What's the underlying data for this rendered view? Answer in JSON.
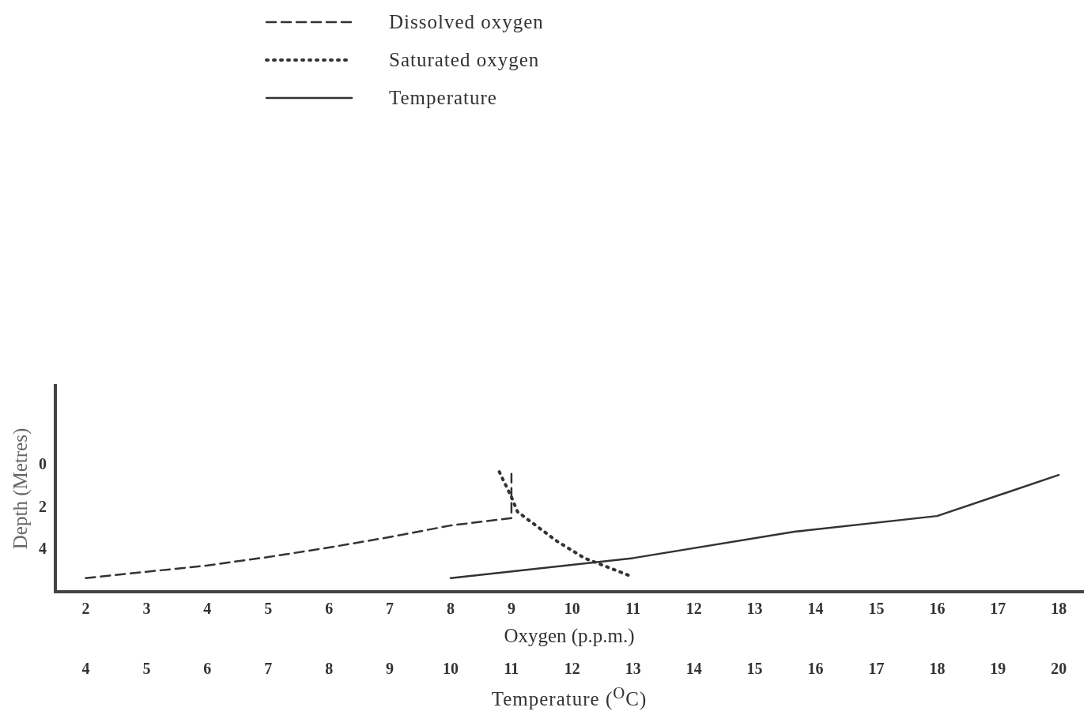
{
  "chart_data": {
    "type": "line",
    "xlabel": "Oxygen (p.p.m.)",
    "x2label": "Temperature ($^{O}$C)",
    "ylabel": "Depth (Metres)",
    "xlim": [
      1.5,
      18.4
    ],
    "xticks": [
      2,
      3,
      4,
      5,
      6,
      7,
      8,
      9,
      10,
      11,
      12,
      13,
      14,
      15,
      16,
      17,
      18
    ],
    "x2lim": [
      3.5,
      20.4
    ],
    "x2ticks": [
      4,
      5,
      6,
      7,
      8,
      9,
      10,
      11,
      12,
      13,
      14,
      15,
      16,
      17,
      18,
      19,
      20
    ],
    "ylim": [
      6,
      -3.8
    ],
    "yticks": [
      0,
      2,
      4
    ],
    "grid": false,
    "legend": "top",
    "marker": "none",
    "series": [
      {
        "name": "Dissolved oxygen",
        "color": "#333333",
        "line_style": "dashed",
        "x": [
          2,
          3,
          4,
          5,
          6,
          7,
          8,
          9,
          9
        ],
        "values": [
          5.35,
          5.05,
          4.75,
          4.35,
          3.9,
          3.4,
          2.85,
          2.5,
          0.4
        ]
      },
      {
        "name": "Saturated oxygen",
        "color": "#333333",
        "line_style": "dotted",
        "x": [
          8.8,
          9.0,
          9.1,
          9.75,
          10.2,
          11.0
        ],
        "values": [
          0.3,
          1.5,
          2.2,
          3.6,
          4.4,
          5.3
        ]
      },
      {
        "name": "Temperature",
        "color": "#333333",
        "line_style": "solid",
        "axis": "x2",
        "x": [
          10,
          13,
          15.65,
          18,
          20
        ],
        "values": [
          5.35,
          4.4,
          3.15,
          2.4,
          0.45
        ]
      }
    ]
  }
}
